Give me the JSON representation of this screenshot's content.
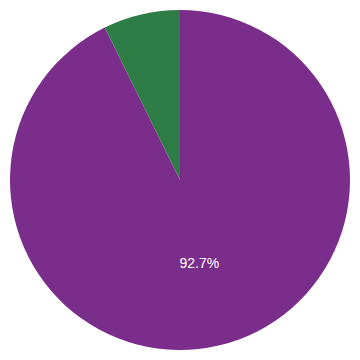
{
  "chart_data": {
    "type": "pie",
    "values": [
      92.7,
      7.3
    ],
    "value_labels": [
      "92.7%",
      null
    ],
    "data_labels": true,
    "colors": [
      "#7b2d8b",
      "#2e7d46"
    ]
  }
}
